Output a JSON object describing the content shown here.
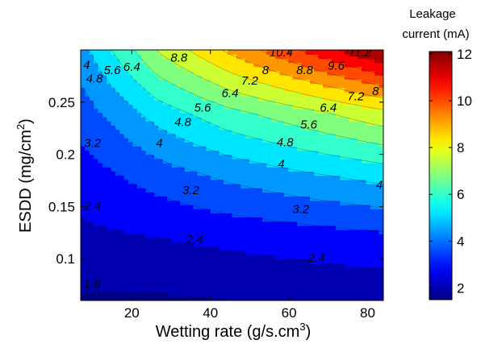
{
  "chart_data": {
    "type": "heatmap",
    "subtype": "filled-contour",
    "xlabel": "Wetting rate (g/s.cm",
    "xlabel_sup": "3",
    "xlabel_end": ")",
    "ylabel": "ESDD (mg/cm",
    "ylabel_sup": "2",
    "ylabel_end": ")",
    "xlim": [
      7,
      84
    ],
    "ylim": [
      0.06,
      0.3
    ],
    "xticks": [
      20,
      40,
      60,
      80
    ],
    "xtick_labels": [
      "20",
      "40",
      "60",
      "80"
    ],
    "yticks": [
      0.1,
      0.15,
      0.2,
      0.25
    ],
    "ytick_labels": [
      "0.1",
      "0.15",
      "0.2",
      "0.25"
    ],
    "colorbar": {
      "title_line1": "Leakage",
      "title_line2": "current (mA)",
      "colormap": "jet",
      "range": [
        1.5,
        12.1
      ],
      "ticks": [
        2,
        4,
        6,
        8,
        10,
        12
      ],
      "tick_labels": [
        "2",
        "4",
        "6",
        "8",
        "10",
        "12"
      ]
    },
    "contour_levels": [
      1.6,
      2.4,
      3.2,
      4,
      4.8,
      5.6,
      6.4,
      7.2,
      8,
      8.8,
      9.6,
      10.4,
      11.2
    ],
    "grid": {
      "x": [
        7,
        27,
        45,
        65,
        84
      ],
      "y": [
        0.06,
        0.12,
        0.18,
        0.24,
        0.3
      ],
      "z": [
        [
          1.5,
          1.5,
          1.6,
          1.7,
          1.8
        ],
        [
          2.2,
          2.4,
          2.6,
          2.8,
          3.0
        ],
        [
          2.8,
          3.6,
          4.2,
          4.7,
          5.1
        ],
        [
          3.6,
          5.2,
          6.2,
          7.0,
          7.8
        ],
        [
          4.5,
          7.3,
          9.0,
          10.6,
          12.1
        ]
      ]
    },
    "contour_labels": [
      {
        "text": "1.6",
        "x": 10,
        "y": 0.075
      },
      {
        "text": "2.4",
        "x": 10,
        "y": 0.15
      },
      {
        "text": "2.4",
        "x": 36,
        "y": 0.118
      },
      {
        "text": "2.4",
        "x": 67,
        "y": 0.1
      },
      {
        "text": "3.2",
        "x": 10,
        "y": 0.21
      },
      {
        "text": "3.2",
        "x": 35,
        "y": 0.165
      },
      {
        "text": "3.2",
        "x": 63,
        "y": 0.147
      },
      {
        "text": "4",
        "x": 8.5,
        "y": 0.285
      },
      {
        "text": "4",
        "x": 27,
        "y": 0.21
      },
      {
        "text": "4",
        "x": 58,
        "y": 0.19
      },
      {
        "text": "4",
        "x": 83,
        "y": 0.17
      },
      {
        "text": "4.8",
        "x": 10.5,
        "y": 0.272
      },
      {
        "text": "4.8",
        "x": 33,
        "y": 0.23
      },
      {
        "text": "4.8",
        "x": 59,
        "y": 0.211
      },
      {
        "text": "5.6",
        "x": 15,
        "y": 0.28
      },
      {
        "text": "5.6",
        "x": 38,
        "y": 0.244
      },
      {
        "text": "5.6",
        "x": 65,
        "y": 0.228
      },
      {
        "text": "6.4",
        "x": 20,
        "y": 0.283
      },
      {
        "text": "6.4",
        "x": 45,
        "y": 0.258
      },
      {
        "text": "6.4",
        "x": 70,
        "y": 0.244
      },
      {
        "text": "7.2",
        "x": 50,
        "y": 0.27
      },
      {
        "text": "7.2",
        "x": 77,
        "y": 0.255
      },
      {
        "text": "8",
        "x": 54,
        "y": 0.28
      },
      {
        "text": "8",
        "x": 82,
        "y": 0.26
      },
      {
        "text": "8.8",
        "x": 32,
        "y": 0.292
      },
      {
        "text": "8.8",
        "x": 64,
        "y": 0.28
      },
      {
        "text": "9.6",
        "x": 72,
        "y": 0.284
      },
      {
        "text": "10.4",
        "x": 58,
        "y": 0.297
      },
      {
        "text": "11.2",
        "x": 78,
        "y": 0.297
      }
    ]
  }
}
